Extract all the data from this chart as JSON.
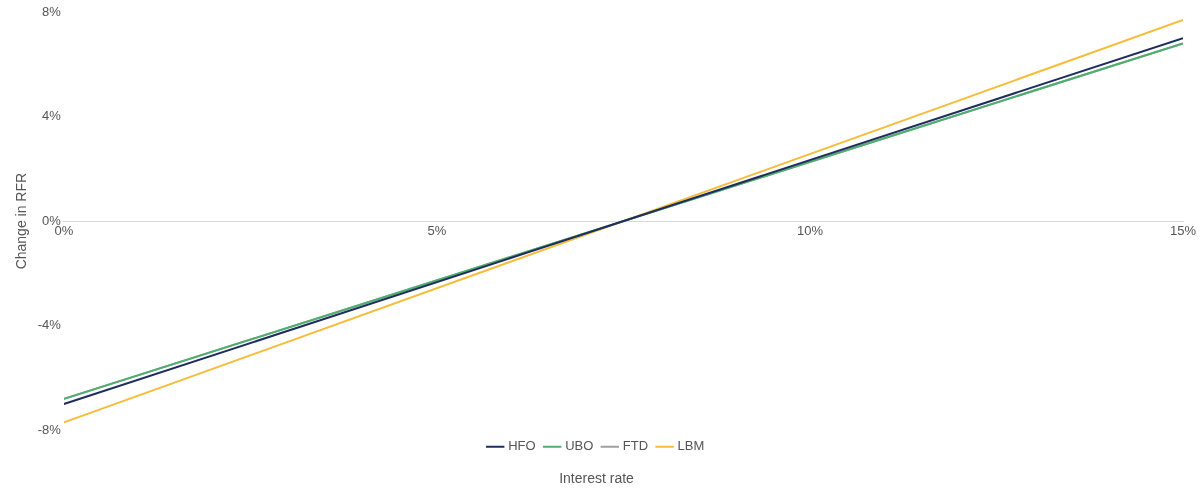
{
  "chart_data": {
    "type": "line",
    "xlabel": "Interest rate",
    "ylabel": "Change in RFR",
    "x": [
      0,
      15
    ],
    "series": [
      {
        "name": "HFO",
        "color": "#1f2d5c",
        "values": [
          -7.0,
          7.0
        ]
      },
      {
        "name": "UBO",
        "color": "#4caf6e",
        "values": [
          -6.8,
          6.8
        ]
      },
      {
        "name": "FTD",
        "color": "#a0a0a0",
        "values": [
          -6.8,
          6.8
        ]
      },
      {
        "name": "LBM",
        "color": "#f6bc3a",
        "values": [
          -7.7,
          7.7
        ]
      }
    ],
    "xlim": [
      0,
      15
    ],
    "xticks": [
      {
        "value": 0,
        "label": "0%"
      },
      {
        "value": 5,
        "label": "5%"
      },
      {
        "value": 10,
        "label": "10%"
      },
      {
        "value": 15,
        "label": "15%"
      }
    ],
    "ylim": [
      -8,
      8
    ],
    "yticks": [
      {
        "value": -8,
        "label": "-8%"
      },
      {
        "value": -4,
        "label": "-4%"
      },
      {
        "value": 0,
        "label": "0%"
      },
      {
        "value": 4,
        "label": "4%"
      },
      {
        "value": 8,
        "label": "8%"
      }
    ],
    "grid": false,
    "legend": "bottom",
    "marker": "none",
    "line_style": "solid"
  }
}
